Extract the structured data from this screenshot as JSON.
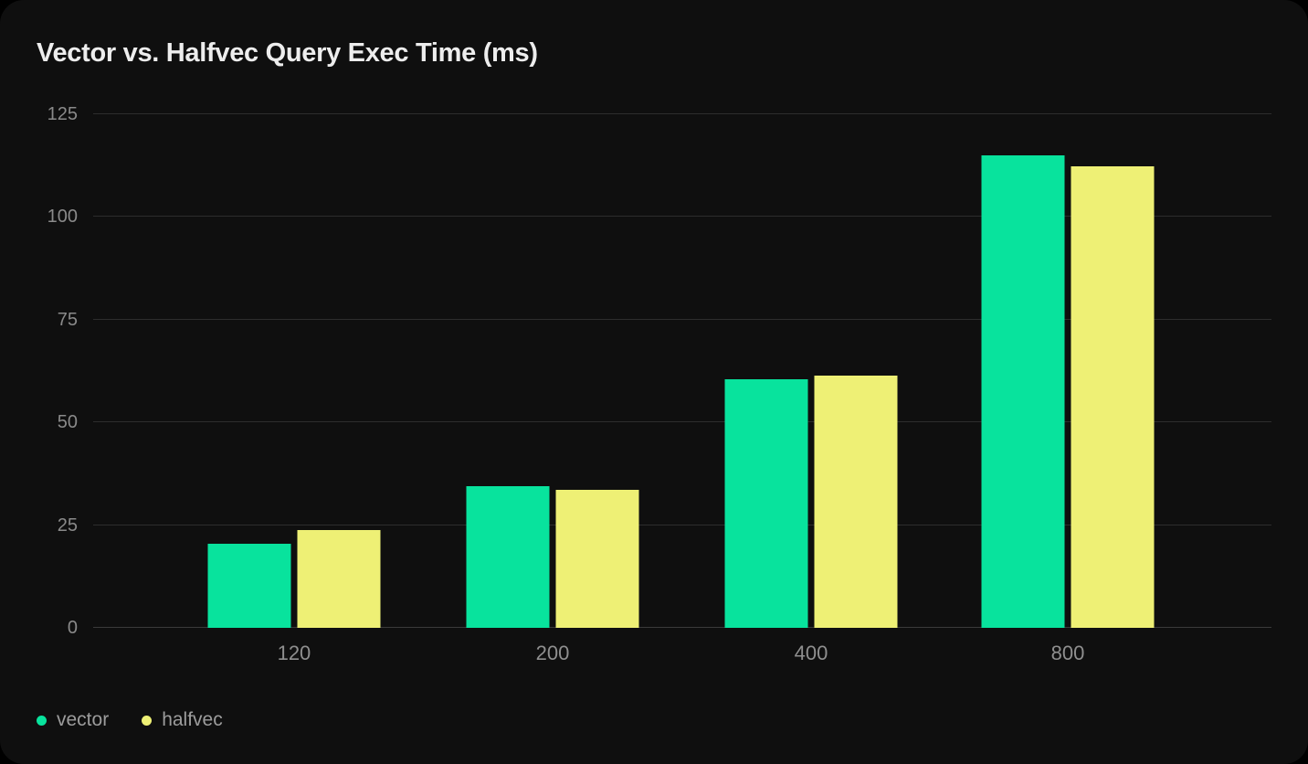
{
  "page": {
    "background": "#000000",
    "card_background": "#0f0f0f"
  },
  "chart_data": {
    "type": "bar",
    "title": "Vector vs. Halfvec Query Exec Time (ms)",
    "categories": [
      "120",
      "200",
      "400",
      "800"
    ],
    "series": [
      {
        "name": "vector",
        "color": "#08e39d",
        "values": [
          20.4,
          34.5,
          60.5,
          114.9
        ]
      },
      {
        "name": "halfvec",
        "color": "#eef075",
        "values": [
          23.9,
          33.5,
          61.4,
          112.3
        ]
      }
    ],
    "xlabel": "",
    "ylabel": "",
    "ylim": [
      0,
      125
    ],
    "yticks": [
      0,
      25,
      50,
      75,
      100,
      125
    ],
    "grid": true,
    "legend_position": "bottom-left",
    "colors": {
      "title_text": "#ededed",
      "tick_text": "#8a8a8a",
      "gridline": "#2d2d2d",
      "baseline": "#3a3a3a",
      "legend_text": "#9c9c9c"
    }
  }
}
